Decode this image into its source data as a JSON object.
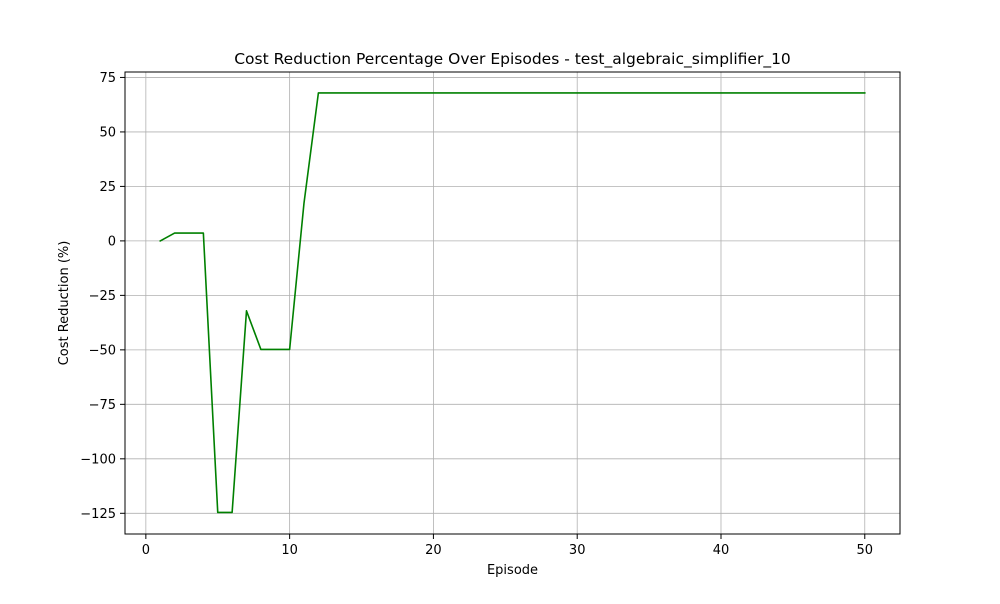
{
  "chart_data": {
    "type": "line",
    "title": "Cost Reduction Percentage Over Episodes - test_algebraic_simplifier_10",
    "xlabel": "Episode",
    "ylabel": "Cost Reduction (%)",
    "xlim": [
      -1.45,
      52.45
    ],
    "ylim": [
      -134.5,
      77.5
    ],
    "x_ticks": [
      0,
      10,
      20,
      30,
      40,
      50
    ],
    "x_tick_labels": [
      "0",
      "10",
      "20",
      "30",
      "40",
      "50"
    ],
    "y_ticks": [
      75,
      50,
      25,
      0,
      -25,
      -50,
      -75,
      -100,
      -125
    ],
    "y_tick_labels": [
      "75",
      "50",
      "25",
      "0",
      "−25",
      "−50",
      "−75",
      "−100",
      "−125"
    ],
    "grid": true,
    "series": [
      {
        "name": "Cost Reduction",
        "color": "#008000",
        "x": [
          1,
          2,
          3,
          4,
          5,
          6,
          7,
          8,
          9,
          10,
          11,
          12,
          13,
          14,
          15,
          16,
          17,
          18,
          19,
          20,
          21,
          22,
          23,
          24,
          25,
          26,
          27,
          28,
          29,
          30,
          31,
          32,
          33,
          34,
          35,
          36,
          37,
          38,
          39,
          40,
          41,
          42,
          43,
          44,
          45,
          46,
          47,
          48,
          49,
          50
        ],
        "y": [
          0,
          3.6,
          3.6,
          3.6,
          -124.6,
          -124.6,
          -32.1,
          -49.8,
          -49.8,
          -49.8,
          17.4,
          67.9,
          67.9,
          67.9,
          67.9,
          67.9,
          67.9,
          67.9,
          67.9,
          67.9,
          67.9,
          67.9,
          67.9,
          67.9,
          67.9,
          67.9,
          67.9,
          67.9,
          67.9,
          67.9,
          67.9,
          67.9,
          67.9,
          67.9,
          67.9,
          67.9,
          67.9,
          67.9,
          67.9,
          67.9,
          67.9,
          67.9,
          67.9,
          67.9,
          67.9,
          67.9,
          67.9,
          67.9,
          67.9,
          67.9
        ]
      }
    ]
  }
}
